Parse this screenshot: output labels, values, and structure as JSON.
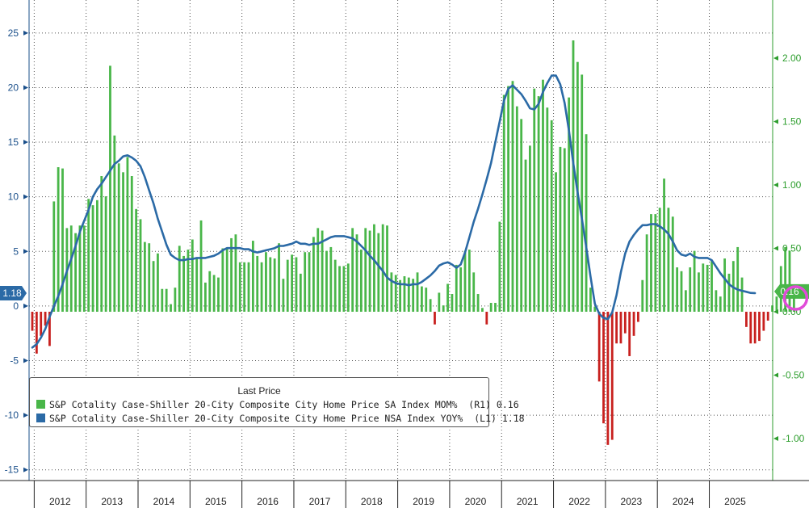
{
  "chart_data": {
    "type": "bar+line",
    "title": "",
    "legend": {
      "title": "Last Price",
      "position": "bottom-left",
      "entries": [
        {
          "label": "S&P Cotality Case-Shiller 20-City Composite City Home Price SA Index MOM%",
          "axis": "(R1)",
          "last": "0.16",
          "color": "#49b649"
        },
        {
          "label": "S&P Cotality Case-Shiller 20-City Composite City Home Price NSA Index YOY%",
          "axis": "(L1)",
          "last": "1.18",
          "color": "#2b6aa6"
        }
      ]
    },
    "x_labels": [
      "2012",
      "2013",
      "2014",
      "2015",
      "2016",
      "2017",
      "2018",
      "2019",
      "2020",
      "2021",
      "2022",
      "2023",
      "2024",
      "2025"
    ],
    "left_axis": {
      "ticks": [
        25,
        20,
        15,
        10,
        5,
        0,
        -5,
        -10,
        -15
      ],
      "ylim": [
        -15.5,
        28.5
      ],
      "last_value_label": "1.18"
    },
    "right_axis": {
      "ticks": [
        "2.00",
        "1.50",
        "1.00",
        "0.50",
        "0.00",
        "-0.50",
        "-1.00"
      ],
      "ylim": [
        -1.24,
        2.47
      ],
      "last_value_label": "0.16"
    },
    "start": "2011-12",
    "series": [
      {
        "name": "MOM% SA (R1)",
        "type": "bar",
        "axis": "right",
        "values": [
          -0.15,
          -0.33,
          -0.19,
          -0.11,
          -0.27,
          0.87,
          1.14,
          1.13,
          0.66,
          0.68,
          0.62,
          0.68,
          0.68,
          0.89,
          0.84,
          0.88,
          1.07,
          0.91,
          1.94,
          1.39,
          1.17,
          1.1,
          1.22,
          1.07,
          0.81,
          0.73,
          0.55,
          0.54,
          0.4,
          0.46,
          0.18,
          0.18,
          0.06,
          0.19,
          0.52,
          0.44,
          0.49,
          0.57,
          0.42,
          0.72,
          0.23,
          0.32,
          0.29,
          0.27,
          0.5,
          0.5,
          0.58,
          0.61,
          0.39,
          0.39,
          0.39,
          0.56,
          0.44,
          0.39,
          0.47,
          0.43,
          0.42,
          0.54,
          0.26,
          0.41,
          0.45,
          0.43,
          0.3,
          0.47,
          0.47,
          0.59,
          0.66,
          0.64,
          0.48,
          0.51,
          0.41,
          0.36,
          0.36,
          0.38,
          0.66,
          0.61,
          0.49,
          0.66,
          0.64,
          0.69,
          0.62,
          0.69,
          0.68,
          0.31,
          0.29,
          0.25,
          0.28,
          0.27,
          0.26,
          0.31,
          0.2,
          0.19,
          0.1,
          -0.1,
          0.15,
          0.05,
          0.22,
          0.14,
          0.37,
          0.35,
          0.48,
          0.49,
          0.31,
          0.14,
          0.03,
          -0.1,
          0.07,
          0.07,
          0.71,
          1.71,
          1.78,
          1.82,
          1.62,
          1.52,
          1.2,
          1.31,
          1.76,
          1.7,
          1.83,
          1.61,
          1.51,
          1.1,
          1.3,
          1.29,
          1.69,
          2.14,
          1.97,
          1.87,
          1.4,
          0.19,
          0.04,
          -0.55,
          -0.88,
          -1.05,
          -1.01,
          -0.25,
          -0.25,
          -0.17,
          -0.35,
          -0.19,
          -0.08,
          0.25,
          0.61,
          0.77,
          0.77,
          0.82,
          1.05,
          0.82,
          0.75,
          0.35,
          0.32,
          0.17,
          0.35,
          0.48,
          0.31,
          0.38,
          0.37,
          0.4,
          0.17,
          0.12,
          0.42,
          0.3,
          0.4,
          0.51,
          0.27,
          -0.12,
          -0.25,
          -0.25,
          -0.23,
          -0.15,
          -0.07,
          0.05,
          0.12,
          0.36,
          0.51,
          0.48,
          0.16
        ]
      },
      {
        "name": "YOY% NSA (L1)",
        "type": "line",
        "axis": "left",
        "start": "2011-12",
        "values": [
          -3.8,
          -3.5,
          -2.9,
          -2.1,
          -1.0,
          0.0,
          0.9,
          2.0,
          3.2,
          4.3,
          5.5,
          6.8,
          7.8,
          8.8,
          10.0,
          10.7,
          11.2,
          11.8,
          12.4,
          13.0,
          13.3,
          13.7,
          13.8,
          13.6,
          13.3,
          12.8,
          11.8,
          10.6,
          9.4,
          8.0,
          6.8,
          5.6,
          4.7,
          4.4,
          4.2,
          4.2,
          4.3,
          4.3,
          4.4,
          4.4,
          4.4,
          4.5,
          4.6,
          4.8,
          5.1,
          5.3,
          5.3,
          5.3,
          5.3,
          5.2,
          5.2,
          5.0,
          4.9,
          5.0,
          5.1,
          5.2,
          5.3,
          5.5,
          5.5,
          5.6,
          5.7,
          5.9,
          5.7,
          5.7,
          5.6,
          5.7,
          5.7,
          5.9,
          6.1,
          6.3,
          6.4,
          6.4,
          6.4,
          6.3,
          6.2,
          5.9,
          5.5,
          5.1,
          4.6,
          4.2,
          3.7,
          3.2,
          2.6,
          2.3,
          2.1,
          2.0,
          2.0,
          1.9,
          2.0,
          2.0,
          2.2,
          2.5,
          2.8,
          3.2,
          3.7,
          3.9,
          4.0,
          3.8,
          3.5,
          3.8,
          4.9,
          6.3,
          7.7,
          8.9,
          10.2,
          11.6,
          13.1,
          15.0,
          16.9,
          18.8,
          19.9,
          20.2,
          19.8,
          19.4,
          18.8,
          18.1,
          18.0,
          18.5,
          19.6,
          20.4,
          21.1,
          21.1,
          20.3,
          18.6,
          16.1,
          13.1,
          10.4,
          8.0,
          5.4,
          2.7,
          0.2,
          -0.7,
          -1.1,
          -1.2,
          -0.6,
          1.0,
          3.1,
          4.8,
          5.9,
          6.5,
          7.0,
          7.4,
          7.4,
          7.5,
          7.5,
          7.3,
          7.0,
          6.6,
          5.9,
          5.1,
          4.7,
          4.6,
          4.8,
          4.5,
          4.4,
          4.4,
          4.4,
          4.2,
          3.6,
          3.0,
          2.5,
          2.0,
          1.7,
          1.5,
          1.4,
          1.3,
          1.2,
          1.18
        ]
      }
    ]
  }
}
